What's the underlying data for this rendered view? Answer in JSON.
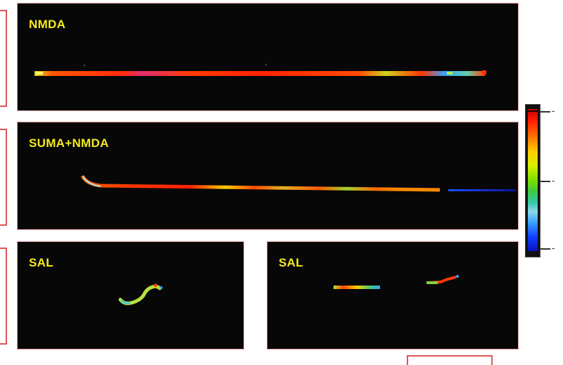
{
  "panels": {
    "nmda": {
      "label": "NMDA"
    },
    "suma_nmda": {
      "label": "SUMA+NMDA"
    },
    "sal_left": {
      "label": "SAL"
    },
    "sal_right": {
      "label": "SAL"
    }
  },
  "colorbar": {
    "colors": [
      "#c00000",
      "#ff6600",
      "#ffcc00",
      "#7ee000",
      "#36c8a8",
      "#3aa0ff",
      "#0a10c0"
    ],
    "tick_labels": [
      "-",
      "-",
      "-"
    ]
  },
  "scale_bar": {
    "label": ""
  }
}
